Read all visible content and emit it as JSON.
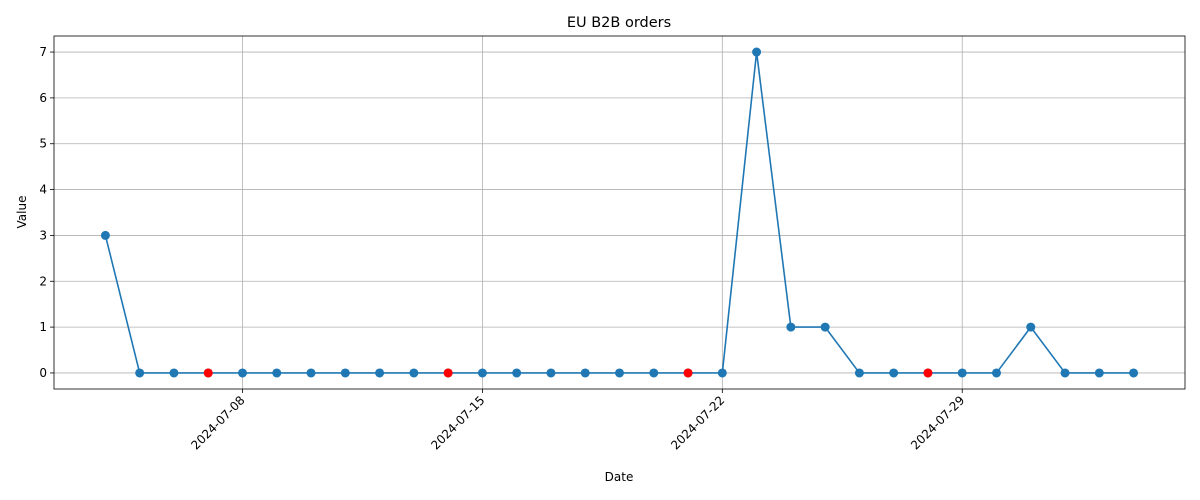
{
  "chart_data": {
    "type": "line",
    "title": "EU B2B orders",
    "xlabel": "Date",
    "ylabel": "Value",
    "x": [
      "2024-07-04",
      "2024-07-05",
      "2024-07-06",
      "2024-07-07",
      "2024-07-08",
      "2024-07-09",
      "2024-07-10",
      "2024-07-11",
      "2024-07-12",
      "2024-07-13",
      "2024-07-14",
      "2024-07-15",
      "2024-07-16",
      "2024-07-17",
      "2024-07-18",
      "2024-07-19",
      "2024-07-20",
      "2024-07-21",
      "2024-07-22",
      "2024-07-23",
      "2024-07-24",
      "2024-07-25",
      "2024-07-26",
      "2024-07-27",
      "2024-07-28",
      "2024-07-29",
      "2024-07-30",
      "2024-07-31",
      "2024-08-01",
      "2024-08-02",
      "2024-08-03"
    ],
    "values": [
      3,
      0,
      0,
      0,
      0,
      0,
      0,
      0,
      0,
      0,
      0,
      0,
      0,
      0,
      0,
      0,
      0,
      0,
      0,
      7,
      1,
      1,
      0,
      0,
      0,
      0,
      0,
      1,
      0,
      0,
      0
    ],
    "highlighted_dates": [
      "2024-07-07",
      "2024-07-14",
      "2024-07-21",
      "2024-07-28"
    ],
    "x_ticks": [
      "2024-07-08",
      "2024-07-15",
      "2024-07-22",
      "2024-07-29"
    ],
    "y_ticks": [
      0,
      1,
      2,
      3,
      4,
      5,
      6,
      7
    ],
    "ylim": [
      -0.35,
      7.35
    ],
    "grid": true,
    "colors": {
      "line": "#1f77b4",
      "marker": "#1f77b4",
      "highlight": "#ff0000",
      "grid": "#b0b0b0"
    }
  }
}
